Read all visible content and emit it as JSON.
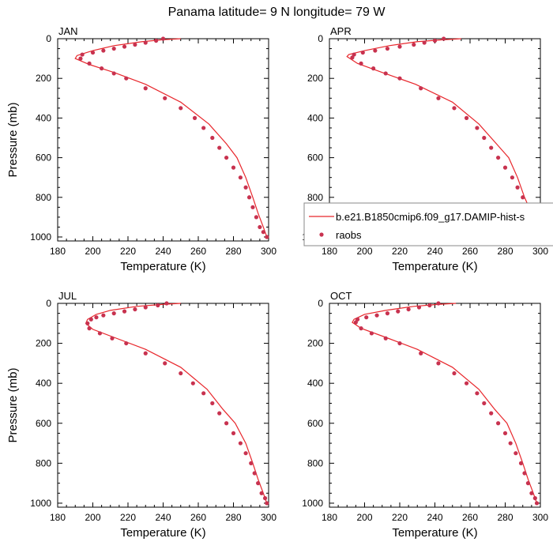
{
  "title": "Panama  latitude= 9 N longitude= 79 W",
  "legend": {
    "line_label": "b.e21.B1850cmip6.f09_g17.DAMIP-hist-s",
    "marker_label": "raobs",
    "line_color": "#e8262b",
    "marker_color": "#c8324f"
  },
  "chart_data": [
    {
      "type": "line",
      "panel_label": "JAN",
      "xlabel": "Temperature (K)",
      "ylabel": "Pressure (mb)",
      "xlim": [
        180,
        300
      ],
      "ylim": [
        1020,
        0
      ],
      "xticks": [
        "180",
        "200",
        "220",
        "240",
        "260",
        "280",
        "300"
      ],
      "yticks": [
        "0",
        "200",
        "400",
        "600",
        "800",
        "1000"
      ],
      "show_legend": false,
      "model": {
        "x": [
          250,
          240,
          228,
          212,
          200,
          191,
          190,
          198,
          212,
          230,
          250,
          266,
          276,
          282,
          287,
          291,
          294,
          297,
          299
        ],
        "y": [
          0,
          5,
          15,
          35,
          60,
          85,
          100,
          130,
          170,
          230,
          320,
          430,
          530,
          600,
          700,
          800,
          880,
          950,
          1000
        ]
      },
      "raobs": {
        "x": [
          240,
          236,
          230,
          224,
          218,
          212,
          206,
          200,
          194,
          193,
          198,
          205,
          212,
          219,
          230,
          241,
          250,
          258,
          263,
          268,
          272,
          276,
          280,
          284,
          287,
          289,
          291,
          293,
          295,
          297,
          299
        ],
        "y": [
          0,
          10,
          20,
          30,
          40,
          50,
          60,
          70,
          80,
          100,
          125,
          150,
          175,
          200,
          250,
          300,
          350,
          400,
          450,
          500,
          550,
          600,
          650,
          700,
          750,
          800,
          850,
          900,
          950,
          975,
          1000
        ]
      }
    },
    {
      "type": "line",
      "panel_label": "APR",
      "xlabel": "Temperature (K)",
      "ylabel": "",
      "xlim": [
        180,
        300
      ],
      "ylim": [
        1020,
        0
      ],
      "xticks": [
        "180",
        "200",
        "220",
        "240",
        "260",
        "280",
        "300"
      ],
      "yticks": [
        "0",
        "200",
        "400",
        "600",
        "800",
        "1000"
      ],
      "show_legend": true,
      "model": {
        "x": [
          255,
          245,
          230,
          214,
          200,
          191,
          190,
          196,
          210,
          229,
          250,
          265,
          275,
          282,
          287,
          291,
          295,
          298,
          300
        ],
        "y": [
          0,
          5,
          15,
          35,
          60,
          80,
          90,
          125,
          170,
          230,
          320,
          430,
          530,
          600,
          700,
          800,
          880,
          950,
          1000
        ]
      },
      "raobs": {
        "x": [
          245,
          240,
          234,
          228,
          220,
          213,
          206,
          199,
          194,
          193,
          198,
          205,
          212,
          220,
          232,
          242,
          251,
          258,
          264,
          268,
          272,
          276,
          280,
          284,
          287,
          290,
          292,
          294,
          296,
          298,
          300
        ],
        "y": [
          0,
          10,
          20,
          30,
          40,
          50,
          60,
          70,
          80,
          95,
          125,
          150,
          175,
          200,
          250,
          300,
          350,
          400,
          450,
          500,
          550,
          600,
          650,
          700,
          750,
          800,
          850,
          900,
          950,
          975,
          1000
        ]
      }
    },
    {
      "type": "line",
      "panel_label": "JUL",
      "xlabel": "Temperature (K)",
      "ylabel": "Pressure (mb)",
      "xlim": [
        180,
        300
      ],
      "ylim": [
        1020,
        0
      ],
      "xticks": [
        "180",
        "200",
        "220",
        "240",
        "260",
        "280",
        "300"
      ],
      "yticks": [
        "0",
        "200",
        "400",
        "600",
        "800",
        "1000"
      ],
      "show_legend": false,
      "model": {
        "x": [
          250,
          240,
          225,
          210,
          202,
          197,
          196,
          200,
          212,
          230,
          250,
          265,
          274,
          281,
          287,
          291,
          294,
          297,
          299
        ],
        "y": [
          0,
          5,
          15,
          35,
          55,
          80,
          100,
          130,
          170,
          230,
          320,
          430,
          530,
          600,
          700,
          800,
          880,
          950,
          1000
        ]
      },
      "raobs": {
        "x": [
          242,
          237,
          230,
          224,
          218,
          212,
          206,
          202,
          199,
          197,
          198,
          204,
          211,
          219,
          230,
          241,
          250,
          257,
          263,
          268,
          272,
          276,
          280,
          284,
          287,
          290,
          292,
          294,
          296,
          298,
          299
        ],
        "y": [
          0,
          10,
          20,
          30,
          40,
          50,
          60,
          70,
          80,
          100,
          125,
          150,
          175,
          200,
          250,
          300,
          350,
          400,
          450,
          500,
          550,
          600,
          650,
          700,
          750,
          800,
          850,
          900,
          950,
          975,
          1000
        ]
      }
    },
    {
      "type": "line",
      "panel_label": "OCT",
      "xlabel": "Temperature (K)",
      "ylabel": "",
      "xlim": [
        180,
        300
      ],
      "ylim": [
        1020,
        0
      ],
      "xticks": [
        "180",
        "200",
        "220",
        "240",
        "260",
        "280",
        "300"
      ],
      "yticks": [
        "0",
        "200",
        "400",
        "600",
        "800",
        "1000"
      ],
      "show_legend": false,
      "model": {
        "x": [
          252,
          242,
          228,
          212,
          200,
          194,
          193,
          198,
          212,
          230,
          250,
          265,
          274,
          281,
          286,
          290,
          293,
          296,
          298
        ],
        "y": [
          0,
          5,
          15,
          35,
          55,
          80,
          95,
          125,
          170,
          230,
          320,
          430,
          530,
          600,
          700,
          800,
          880,
          950,
          1000
        ]
      },
      "raobs": {
        "x": [
          242,
          237,
          231,
          225,
          219,
          213,
          207,
          201,
          196,
          195,
          198,
          204,
          212,
          220,
          232,
          242,
          251,
          258,
          264,
          268,
          272,
          276,
          280,
          283,
          286,
          289,
          291,
          293,
          295,
          297,
          298
        ],
        "y": [
          0,
          10,
          20,
          30,
          40,
          50,
          60,
          70,
          80,
          95,
          125,
          150,
          175,
          200,
          250,
          300,
          350,
          400,
          450,
          500,
          550,
          600,
          650,
          700,
          750,
          800,
          850,
          900,
          950,
          975,
          1000
        ]
      }
    }
  ]
}
